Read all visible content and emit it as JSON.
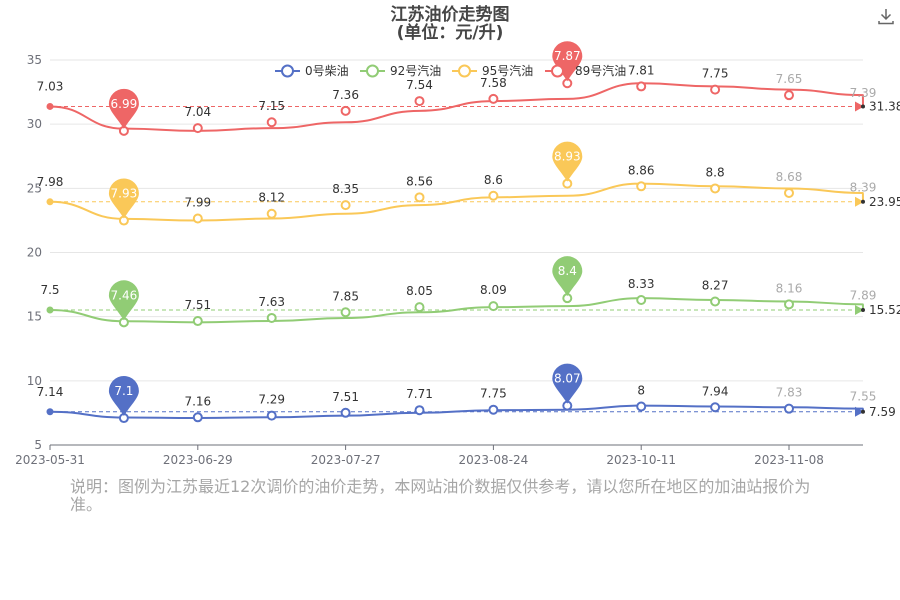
{
  "title_line1": "江苏油价走势图",
  "title_line2": "(单位：元/升)",
  "note": "说明：图例为江苏最近12次调价的油价走势，本网站油价数据仅供参考，请以您所在地区的加油站报价为准。",
  "icons": {
    "download": "download-icon"
  },
  "chart_data": {
    "type": "line",
    "ylim": [
      5,
      35
    ],
    "yticks": [
      5,
      10,
      15,
      20,
      25,
      30,
      35
    ],
    "x_tick_labels": [
      "2023-05-31",
      "2023-06-29",
      "2023-07-27",
      "2023-08-24",
      "2023-10-11",
      "2023-11-08"
    ],
    "grid": true,
    "legend_position": "top-center",
    "series": [
      {
        "name": "0号柴油",
        "color": "#5470c6",
        "labels": [
          "7.14",
          "7.1",
          "7.16",
          "7.29",
          "7.51",
          "7.71",
          "7.75",
          "8.07",
          "8",
          "7.94",
          "7.83",
          "7.55"
        ],
        "plot_values": [
          7.14,
          7.1,
          7.16,
          7.29,
          7.51,
          7.71,
          7.75,
          8.07,
          8,
          7.94,
          7.83,
          7.55
        ],
        "start_value": 7.59,
        "end_value": 7.59,
        "end_label": "7.59",
        "min_value": 7.1,
        "max_value": 8.07
      },
      {
        "name": "92号汽油",
        "color": "#91cc75",
        "labels": [
          "7.5",
          "7.46",
          "7.51",
          "7.63",
          "7.85",
          "8.05",
          "8.09",
          "8.4",
          "8.33",
          "8.27",
          "8.16",
          "7.89"
        ],
        "plot_values": [
          14.64,
          14.56,
          14.66,
          14.9,
          15.34,
          15.74,
          15.82,
          16.44,
          16.3,
          16.18,
          15.96,
          15.42
        ],
        "start_value": 15.52,
        "end_value": 15.52,
        "end_label": "15.52",
        "min_value": 7.46,
        "max_value": 8.4
      },
      {
        "name": "95号汽油",
        "color": "#fac858",
        "labels": [
          "7.98",
          "7.93",
          "7.99",
          "8.12",
          "8.35",
          "8.56",
          "8.6",
          "8.93",
          "8.86",
          "8.8",
          "8.68",
          "8.39"
        ],
        "plot_values": [
          22.62,
          22.49,
          22.65,
          23.02,
          23.69,
          24.3,
          24.42,
          25.37,
          25.16,
          24.99,
          24.64,
          23.8
        ],
        "start_value": 23.95,
        "end_value": 23.95,
        "end_label": "23.95",
        "min_value": 7.93,
        "max_value": 8.93
      },
      {
        "name": "89号汽油",
        "color": "#ee6666",
        "labels": [
          "7.03",
          "6.99",
          "7.04",
          "7.15",
          "7.36",
          "7.54",
          "7.58",
          "7.87",
          "7.81",
          "7.75",
          "7.65",
          "7.39"
        ],
        "plot_values": [
          29.65,
          29.48,
          29.69,
          30.15,
          31.04,
          31.8,
          31.97,
          33.19,
          32.94,
          32.69,
          32.26,
          31.17
        ],
        "start_value": 31.38,
        "end_value": 31.38,
        "end_label": "31.38",
        "min_value": 6.99,
        "max_value": 7.87
      }
    ]
  }
}
